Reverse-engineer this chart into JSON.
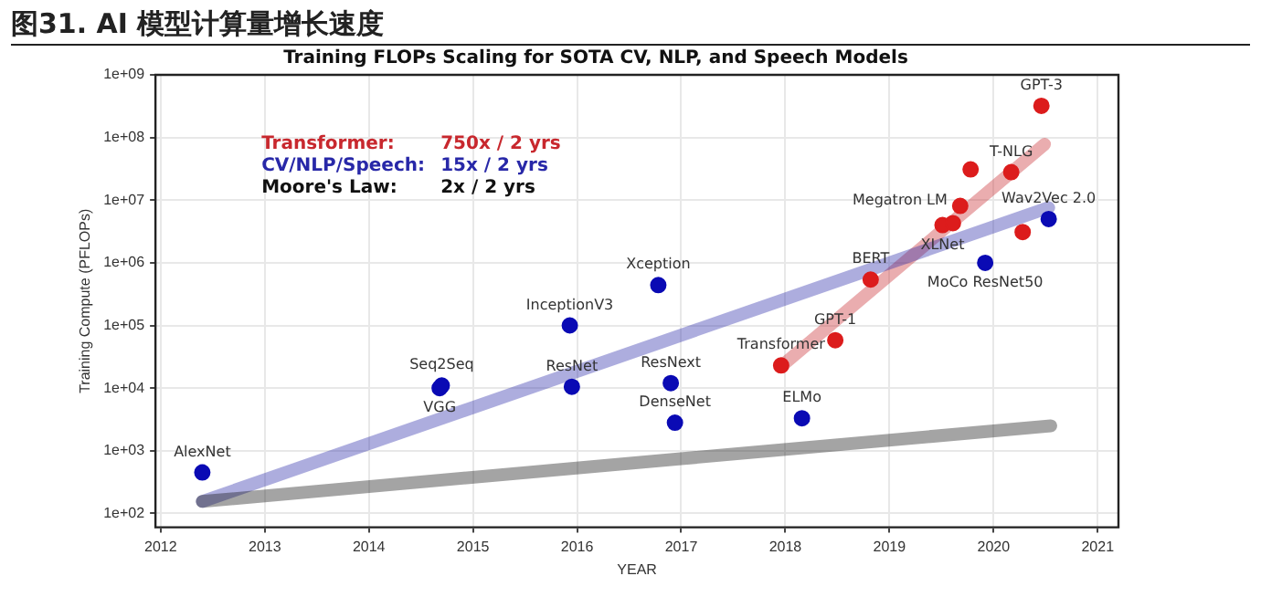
{
  "chart_data": {
    "type": "scatter",
    "title": "图31. AI 模型计算量增长速度",
    "subtitle": "Training FLOPs Scaling for SOTA CV, NLP, and Speech Models",
    "xlabel": "YEAR",
    "ylabel": "Training Compute (PFLOPs)",
    "log": "y",
    "grid": true,
    "legend": "top left",
    "marker": "circle",
    "xlim": [
      2011.95,
      2021.2
    ],
    "xticks": [
      2012,
      2013,
      2014,
      2015,
      2016,
      2017,
      2018,
      2019,
      2020,
      2021
    ],
    "ylim": [
      60,
      1000000000
    ],
    "yticks": [
      {
        "value": 100,
        "label": "1e+02"
      },
      {
        "value": 1000,
        "label": "1e+03"
      },
      {
        "value": 10000,
        "label": "1e+04"
      },
      {
        "value": 100000,
        "label": "1e+05"
      },
      {
        "value": 1000000,
        "label": "1e+06"
      },
      {
        "value": 10000000,
        "label": "1e+07"
      },
      {
        "value": 100000000,
        "label": "1e+08"
      },
      {
        "value": 1000000000,
        "label": "1e+09"
      }
    ],
    "series": [
      {
        "type": "line",
        "marker": "none",
        "name": "Moore's Law: 2x / 2 yrs",
        "color": "#111111",
        "x": [
          2012.4,
          2020.55
        ],
        "values": [
          155,
          2500
        ]
      },
      {
        "type": "line",
        "marker": "none",
        "name": "CV/NLP/Speech: 15x / 2 yrs",
        "color": "#2828a8",
        "x": [
          2012.4,
          2020.53
        ],
        "values": [
          155,
          7600000
        ]
      },
      {
        "type": "line",
        "marker": "none",
        "name": "Transformer: 750x / 2 yrs",
        "color": "#c8282e",
        "x": [
          2017.97,
          2020.49
        ],
        "values": [
          23000,
          78000000
        ]
      },
      {
        "color": "#0a0ab4",
        "x": [
          2012.4,
          2014.68,
          2014.7,
          2015.93,
          2015.95,
          2016.78,
          2016.9,
          2016.94,
          2018.16,
          2019.92,
          2020.53
        ],
        "values": [
          450,
          10000,
          11000,
          100000,
          10500,
          440000,
          12000,
          2800,
          3300,
          1000000,
          5000000
        ]
      },
      {
        "color": "#dc1c1c",
        "x": [
          2017.96,
          2018.48,
          2018.82,
          2019.51,
          2019.61,
          2019.68,
          2019.78,
          2020.17,
          2020.28,
          2020.46
        ],
        "values": [
          23000,
          58000,
          540000,
          4000000,
          4300000,
          8100000,
          31000000,
          28000000,
          3100000,
          320000000
        ]
      }
    ],
    "annotations": [
      {
        "text": "AlexNet",
        "x": 2012.4,
        "y": 450
      },
      {
        "text": "Seq2Seq",
        "x": 2014.7,
        "y": 11000
      },
      {
        "text": "VGG",
        "x": 2014.68,
        "y": 10000
      },
      {
        "text": "InceptionV3",
        "x": 2015.93,
        "y": 100000
      },
      {
        "text": "ResNet",
        "x": 2015.95,
        "y": 10500
      },
      {
        "text": "Xception",
        "x": 2016.78,
        "y": 440000
      },
      {
        "text": "ResNext",
        "x": 2016.9,
        "y": 12000
      },
      {
        "text": "DenseNet",
        "x": 2016.94,
        "y": 2800
      },
      {
        "text": "ELMo",
        "x": 2018.16,
        "y": 3300
      },
      {
        "text": "Transformer",
        "x": 2017.96,
        "y": 23000
      },
      {
        "text": "GPT-1",
        "x": 2018.48,
        "y": 58000
      },
      {
        "text": "BERT",
        "x": 2018.82,
        "y": 540000
      },
      {
        "text": "XLNet",
        "x": 2019.51,
        "y": 4000000
      },
      {
        "text": "Megatron LM",
        "x": 2019.68,
        "y": 8100000
      },
      {
        "text": "T-NLG",
        "x": 2020.17,
        "y": 28000000
      },
      {
        "text": "GPT-3",
        "x": 2020.46,
        "y": 320000000
      },
      {
        "text": "Wav2Vec 2.0",
        "x": 2020.53,
        "y": 5000000
      },
      {
        "text": "MoCo ResNet50",
        "x": 2019.92,
        "y": 1000000
      }
    ]
  }
}
